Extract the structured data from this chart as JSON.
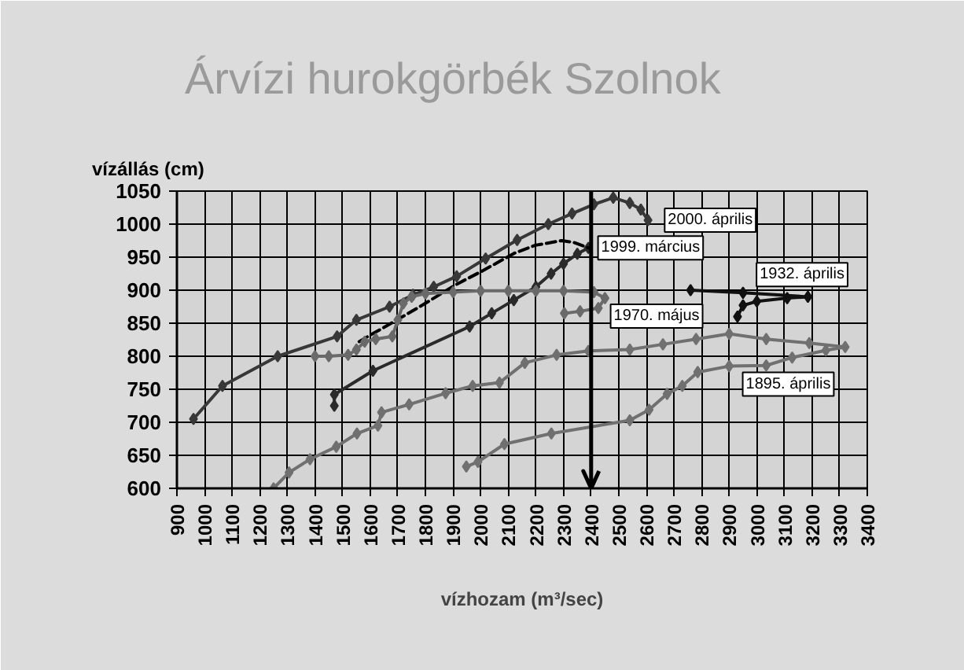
{
  "chart_data": {
    "type": "line",
    "title": "Árvízi hurokgörbék Szolnok",
    "xlabel": "vízhozam (m³/sec)",
    "ylabel": "vízállás (cm)",
    "xlim": [
      900,
      3400
    ],
    "ylim": [
      600,
      1050
    ],
    "xticks": [
      900,
      1000,
      1100,
      1200,
      1300,
      1400,
      1500,
      1600,
      1700,
      1800,
      1900,
      2000,
      2100,
      2200,
      2300,
      2400,
      2500,
      2600,
      2700,
      2800,
      2900,
      3000,
      3100,
      3200,
      3300,
      3400
    ],
    "yticks": [
      600,
      650,
      700,
      750,
      800,
      850,
      900,
      950,
      1000,
      1050
    ],
    "grid": true,
    "marker": "diamond",
    "series": [
      {
        "name": "2000. április",
        "color": "#383838",
        "x": [
          960,
          1065,
          1265,
          1480,
          1550,
          1670,
          1755,
          1830,
          1913,
          2018,
          2132,
          2245,
          2331,
          2410,
          2480,
          2540,
          2580,
          2606
        ],
        "values": [
          705,
          755,
          800,
          830,
          855,
          875,
          893,
          905,
          921,
          948,
          976,
          1000,
          1016,
          1030,
          1040,
          1032,
          1022,
          1006
        ]
      },
      {
        "color": "#2a2a2a",
        "x": [
          1470,
          1470,
          1610,
          1960,
          2040,
          2120,
          2200,
          2255,
          2300,
          2350,
          2390
        ],
        "values": [
          725,
          742,
          778,
          845,
          865,
          885,
          905,
          925,
          940,
          955,
          964
        ]
      },
      {
        "name": "1999. március",
        "color": "#000000",
        "line_style": "dashed",
        "marker": "none",
        "x": [
          1560,
          1600,
          1660,
          1771,
          1819,
          1913,
          2010,
          2122,
          2198,
          2293,
          2340,
          2390
        ],
        "values": [
          822,
          832,
          846,
          873,
          885,
          909,
          930,
          956,
          968,
          975,
          972,
          964
        ]
      },
      {
        "name": "1970. május",
        "color": "#6a6a6a",
        "x": [
          1400,
          1450,
          1520,
          1550,
          1580,
          1620,
          1680,
          1700,
          1720,
          1750,
          1800,
          1900,
          2000,
          2100,
          2200,
          2300,
          2410,
          2450,
          2426,
          2360,
          2303
        ],
        "values": [
          800,
          800,
          802,
          810,
          822,
          826,
          830,
          855,
          880,
          890,
          895,
          897,
          899,
          899,
          899,
          899,
          897,
          888,
          873,
          868,
          865
        ]
      },
      {
        "name": "1932. április",
        "color": "#111111",
        "x": [
          2760,
          2950,
          3185,
          3110,
          3000,
          2950,
          2930
        ],
        "values": [
          900,
          896,
          890,
          888,
          883,
          877,
          860
        ]
      },
      {
        "name": "1895. április",
        "color": "#707070",
        "x": [
          1948,
          1990,
          2086,
          2256,
          2540,
          2610,
          2675,
          2730,
          2786,
          2900,
          3034,
          3128,
          3250,
          3320,
          3190,
          3034,
          2900,
          2780,
          2660,
          2540,
          2390,
          2275,
          2160,
          2068,
          1971,
          1873,
          1741,
          1641,
          1628,
          1552,
          1477,
          1382,
          1306,
          1250
        ],
        "values": [
          633,
          640,
          667,
          683,
          703,
          719,
          743,
          755,
          776,
          785,
          786,
          798,
          809,
          814,
          820,
          826,
          834,
          826,
          818,
          810,
          808,
          802,
          790,
          760,
          755,
          744,
          727,
          715,
          695,
          683,
          663,
          644,
          624,
          600
        ]
      }
    ],
    "ref_lines": [
      {
        "axis": "x",
        "value": 2400,
        "color": "#000000"
      }
    ]
  }
}
